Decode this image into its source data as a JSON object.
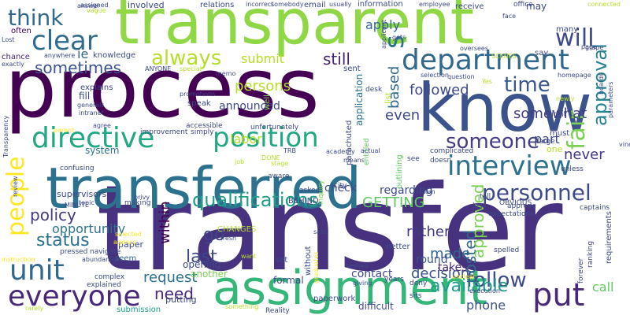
{
  "words": [
    {
      "text": "transfer",
      "color": "#46327e"
    },
    {
      "text": "process",
      "color": "#440154"
    },
    {
      "text": "transparent",
      "color": "#8fd744"
    },
    {
      "text": "transferred",
      "color": "#2c728e"
    },
    {
      "text": "know",
      "color": "#3b528b"
    },
    {
      "text": "assignment",
      "color": "#35b779"
    },
    {
      "text": "department",
      "color": "#31688e"
    },
    {
      "text": "clear",
      "color": "#2f6c8e"
    },
    {
      "text": "directive",
      "color": "#22a884"
    },
    {
      "text": "position",
      "color": "#22a884"
    },
    {
      "text": "interview",
      "color": "#2c728e"
    },
    {
      "text": "everyone",
      "color": "#482878"
    },
    {
      "text": "unit",
      "color": "#31688e"
    },
    {
      "text": "will",
      "color": "#3e4989"
    },
    {
      "text": "put",
      "color": "#482878"
    },
    {
      "text": "think",
      "color": "#31688e"
    },
    {
      "text": "people",
      "color": "#fde725"
    },
    {
      "text": "personnel",
      "color": "#3e4989"
    },
    {
      "text": "someone",
      "color": "#433e85"
    },
    {
      "text": "qualifications",
      "color": "#1f9e89"
    },
    {
      "text": "always",
      "color": "#b5de2b"
    },
    {
      "text": "fair",
      "color": "#7ad151"
    },
    {
      "text": "follow",
      "color": "#3e4989"
    },
    {
      "text": "time",
      "color": "#39568c"
    },
    {
      "text": "approval",
      "color": "#26828e"
    },
    {
      "text": "followed",
      "color": "#3e4989"
    },
    {
      "text": "sometimes",
      "color": "#3b528b"
    },
    {
      "text": "status",
      "color": "#2c728e"
    },
    {
      "text": "policy",
      "color": "#443983"
    },
    {
      "text": "need",
      "color": "#482878"
    },
    {
      "text": "last",
      "color": "#3e4989"
    },
    {
      "text": "request",
      "color": "#2c728e"
    },
    {
      "text": "available",
      "color": "#1f9e89"
    },
    {
      "text": "decision",
      "color": "#3b528b"
    },
    {
      "text": "made",
      "color": "#31688e"
    },
    {
      "text": "GETTING",
      "color": "#5ec962"
    },
    {
      "text": "go",
      "color": "#414487"
    },
    {
      "text": "still",
      "color": "#482475"
    },
    {
      "text": "persons",
      "color": "#b5de2b"
    },
    {
      "text": "somewhat",
      "color": "#433e85"
    },
    {
      "text": "s",
      "color": "#2c728e"
    },
    {
      "text": "even",
      "color": "#3e4989"
    },
    {
      "text": "rather",
      "color": "#443983"
    },
    {
      "text": "opportunity",
      "color": "#2c728e"
    },
    {
      "text": "posted",
      "color": "#31688e"
    },
    {
      "text": "approved",
      "color": "#7ad151"
    },
    {
      "text": "labor",
      "color": "#b5de2b"
    },
    {
      "text": "submit",
      "color": "#b5de2b"
    },
    {
      "text": "based",
      "color": "#31688e"
    },
    {
      "text": "apply",
      "color": "#31688e"
    },
    {
      "text": "never",
      "color": "#443983"
    },
    {
      "text": "part",
      "color": "#3e4989"
    },
    {
      "text": "within",
      "color": "#440154"
    },
    {
      "text": "call",
      "color": "#5ec962"
    },
    {
      "text": "phone",
      "color": "#3b528b"
    },
    {
      "text": "takes",
      "color": "#482878"
    },
    {
      "text": "round",
      "color": "#3b528b"
    },
    {
      "text": "contact",
      "color": "#3e4989"
    },
    {
      "text": "formal",
      "color": "#3e4989"
    },
    {
      "text": "announced",
      "color": "#3e4989"
    },
    {
      "text": "check",
      "color": "#3e4989"
    },
    {
      "text": "regarding",
      "color": "#3e4989"
    },
    {
      "text": "application",
      "color": "#2c728e"
    },
    {
      "text": "ie",
      "color": "#31688e"
    },
    {
      "text": "often",
      "color": "#440154"
    },
    {
      "text": "chance",
      "color": "#482878"
    },
    {
      "text": "fill",
      "color": "#3e4989"
    },
    {
      "text": "many",
      "color": "#3e4989"
    },
    {
      "text": "requirements",
      "color": "#3e4989"
    },
    {
      "text": "system",
      "color": "#2c728e"
    },
    {
      "text": "supervisors",
      "color": "#3e4989"
    },
    {
      "text": "opening",
      "color": "#3e4989"
    },
    {
      "text": "paper",
      "color": "#3e4989"
    },
    {
      "text": "putting",
      "color": "#3e4989"
    },
    {
      "text": "submission",
      "color": "#1f9e89"
    },
    {
      "text": "difficult",
      "color": "#3e4989"
    },
    {
      "text": "paperwork",
      "color": "#3e4989"
    },
    {
      "text": "another",
      "color": "#7ad151"
    },
    {
      "text": "CHANGES",
      "color": "#b5de2b"
    },
    {
      "text": "BEHIND",
      "color": "#3e4989"
    },
    {
      "text": "seem",
      "color": "#31688e"
    },
    {
      "text": "explains",
      "color": "#3e4989"
    },
    {
      "text": "knowledge",
      "color": "#3e4989"
    },
    {
      "text": "well",
      "color": "#7ad151"
    },
    {
      "text": "sent",
      "color": "#3e4989"
    },
    {
      "text": "involved",
      "color": "#3e4989"
    },
    {
      "text": "relations",
      "color": "#3e4989"
    },
    {
      "text": "email",
      "color": "#3e4989"
    },
    {
      "text": "information",
      "color": "#3e4989"
    },
    {
      "text": "receive",
      "color": "#3e4989"
    },
    {
      "text": "office",
      "color": "#3e4989"
    },
    {
      "text": "may",
      "color": "#3e4989"
    },
    {
      "text": "say",
      "color": "#3e4989"
    },
    {
      "text": "desk",
      "color": "#3e4989"
    },
    {
      "text": "speak",
      "color": "#3e4989"
    },
    {
      "text": "improvement",
      "color": "#3e4989"
    },
    {
      "text": "simply",
      "color": "#3e4989"
    },
    {
      "text": "unfortunately",
      "color": "#3e4989"
    },
    {
      "text": "accessible",
      "color": "#3e4989"
    },
    {
      "text": "parachuted",
      "color": "#3e4989"
    },
    {
      "text": "entitled",
      "color": "#5ec962"
    },
    {
      "text": "list",
      "color": "#b5de2b"
    },
    {
      "text": "must",
      "color": "#3e4989"
    },
    {
      "text": "right",
      "color": "#3e4989"
    },
    {
      "text": "doesn",
      "color": "#3e4989"
    },
    {
      "text": "see",
      "color": "#3e4989"
    },
    {
      "text": "unless",
      "color": "#3e4989"
    },
    {
      "text": "large",
      "color": "#3e4989"
    },
    {
      "text": "one",
      "color": "#b5de2b"
    },
    {
      "text": "outlining",
      "color": "#5ec962"
    },
    {
      "text": "complicated",
      "color": "#3e4989"
    },
    {
      "text": "asked",
      "color": "#3e4989"
    },
    {
      "text": "city",
      "color": "#3e4989"
    },
    {
      "text": "TRB",
      "color": "#3e4989"
    },
    {
      "text": "academy",
      "color": "#3e4989"
    },
    {
      "text": "actual",
      "color": "#3e4989"
    },
    {
      "text": "means",
      "color": "#3e4989"
    },
    {
      "text": "DONE",
      "color": "#b5de2b"
    },
    {
      "text": "job",
      "color": "#b5de2b"
    },
    {
      "text": "aware",
      "color": "#3e4989"
    },
    {
      "text": "stage",
      "color": "#b5de2b"
    },
    {
      "text": "inquiry",
      "color": "#7ad151"
    },
    {
      "text": "room",
      "color": "#3e4989"
    },
    {
      "text": "tell",
      "color": "#3e4989"
    },
    {
      "text": "less",
      "color": "#3e4989"
    },
    {
      "text": "approve",
      "color": "#3e4989"
    },
    {
      "text": "captains",
      "color": "#3e4989"
    },
    {
      "text": "OBVIOUS",
      "color": "#3e4989"
    },
    {
      "text": "ranking",
      "color": "#3e4989"
    },
    {
      "text": "expectations",
      "color": "#3e4989"
    },
    {
      "text": "spelled",
      "color": "#3e4989"
    },
    {
      "text": "forever",
      "color": "#3e4989"
    },
    {
      "text": "unclear",
      "color": "#fde725"
    },
    {
      "text": "sits",
      "color": "#3e4989"
    },
    {
      "text": "deny",
      "color": "#3e4989"
    },
    {
      "text": "years",
      "color": "#3e4989"
    },
    {
      "text": "giving",
      "color": "#3e4989"
    },
    {
      "text": "better",
      "color": "#3e4989"
    },
    {
      "text": "needed",
      "color": "#3e4989"
    },
    {
      "text": "graduates",
      "color": "#fde725"
    },
    {
      "text": "without",
      "color": "#3e4989"
    },
    {
      "text": "said",
      "color": "#3e4989"
    },
    {
      "text": "set",
      "color": "#3e4989"
    },
    {
      "text": "want",
      "color": "#b5de2b"
    },
    {
      "text": "fresh",
      "color": "#3e4989"
    },
    {
      "text": "Reality",
      "color": "#3e4989"
    },
    {
      "text": "something",
      "color": "#b5de2b"
    },
    {
      "text": "rarely",
      "color": "#b5de2b"
    },
    {
      "text": "explained",
      "color": "#3e4989"
    },
    {
      "text": "complex",
      "color": "#3e4989"
    },
    {
      "text": "abundantly",
      "color": "#3e4989"
    },
    {
      "text": "pressed",
      "color": "#3e4989"
    },
    {
      "text": "navigate",
      "color": "#3e4989"
    },
    {
      "text": "selected",
      "color": "#fde725"
    },
    {
      "text": "agency",
      "color": "#fde725"
    },
    {
      "text": "making",
      "color": "#3e4989"
    },
    {
      "text": "privy",
      "color": "#3e4989"
    },
    {
      "text": "MINUTE",
      "color": "#3e4989"
    },
    {
      "text": "topic",
      "color": "#3e4989"
    },
    {
      "text": "review",
      "color": "#3e4989"
    },
    {
      "text": "instruction",
      "color": "#fde725"
    },
    {
      "text": "parent",
      "color": "#fde725"
    },
    {
      "text": "confusing",
      "color": "#3e4989"
    },
    {
      "text": "agree",
      "color": "#3e4989"
    },
    {
      "text": "generals",
      "color": "#3e4989"
    },
    {
      "text": "intranet",
      "color": "#3e4989"
    },
    {
      "text": "promotions",
      "color": "#3e4989"
    },
    {
      "text": "special",
      "color": "#b5de2b"
    },
    {
      "text": "memo",
      "color": "#3e4989"
    },
    {
      "text": "ANYONE",
      "color": "#3e4989"
    },
    {
      "text": "Transparency",
      "color": "#3e4989"
    },
    {
      "text": "exactly",
      "color": "#3e4989"
    },
    {
      "text": "anywhere",
      "color": "#3e4989"
    },
    {
      "text": "Lost",
      "color": "#3e4989"
    },
    {
      "text": "answer",
      "color": "#3e4989"
    },
    {
      "text": "assigned",
      "color": "#3e4989"
    },
    {
      "text": "vague",
      "color": "#b5de2b"
    },
    {
      "text": "incorrect",
      "color": "#3e4989"
    },
    {
      "text": "somebody",
      "color": "#3e4989"
    },
    {
      "text": "usually",
      "color": "#3e4989"
    },
    {
      "text": "employee",
      "color": "#3e4989"
    },
    {
      "text": "applicant",
      "color": "#3e4989"
    },
    {
      "text": "gets",
      "color": "#3e4989"
    },
    {
      "text": "oversees",
      "color": "#3e4989"
    },
    {
      "text": "SCENES",
      "color": "#b5de2b"
    },
    {
      "text": "face",
      "color": "#3e4989"
    },
    {
      "text": "grape",
      "color": "#3e4989"
    },
    {
      "text": "page",
      "color": "#3e4989"
    },
    {
      "text": "connected",
      "color": "#b5de2b"
    },
    {
      "text": "selection",
      "color": "#3e4989"
    },
    {
      "text": "question",
      "color": "#3e4989"
    },
    {
      "text": "Yes",
      "color": "#b5de2b"
    },
    {
      "text": "homepage",
      "color": "#3e4989"
    },
    {
      "text": "newly",
      "color": "#b5de2b"
    },
    {
      "text": "boards",
      "color": "#3e4989"
    },
    {
      "text": "parameters",
      "color": "#3e4989"
    },
    {
      "text": "vine",
      "color": "#3e4989"
    },
    {
      "text": "execution",
      "color": "#3e4989"
    }
  ]
}
